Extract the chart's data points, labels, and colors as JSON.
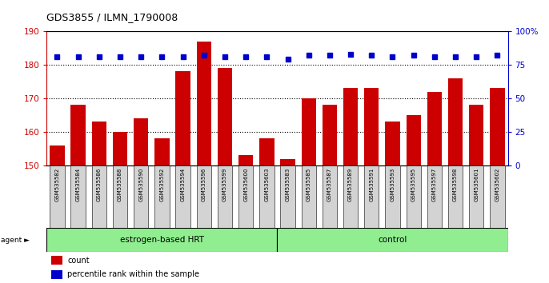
{
  "title": "GDS3855 / ILMN_1790008",
  "samples": [
    "GSM535582",
    "GSM535584",
    "GSM535586",
    "GSM535588",
    "GSM535590",
    "GSM535592",
    "GSM535594",
    "GSM535596",
    "GSM535599",
    "GSM535600",
    "GSM535603",
    "GSM535583",
    "GSM535585",
    "GSM535587",
    "GSM535589",
    "GSM535591",
    "GSM535593",
    "GSM535595",
    "GSM535597",
    "GSM535598",
    "GSM535601",
    "GSM535602"
  ],
  "counts": [
    156,
    168,
    163,
    160,
    164,
    158,
    178,
    187,
    179,
    153,
    158,
    152,
    170,
    168,
    173,
    173,
    163,
    165,
    172,
    176,
    168,
    173
  ],
  "percentiles": [
    81,
    81,
    81,
    81,
    81,
    81,
    81,
    82,
    81,
    81,
    81,
    79,
    82,
    82,
    83,
    82,
    81,
    82,
    81,
    81,
    81,
    82
  ],
  "group1_label": "estrogen-based HRT",
  "group2_label": "control",
  "group1_count": 11,
  "group2_count": 11,
  "ylim_left": [
    150,
    190
  ],
  "ylim_right": [
    0,
    100
  ],
  "yticks_left": [
    150,
    160,
    170,
    180,
    190
  ],
  "yticks_right": [
    0,
    25,
    50,
    75,
    100
  ],
  "bar_color": "#cc0000",
  "dot_color": "#0000cc",
  "group_bg": "#90ee90",
  "tick_bg": "#d3d3d3",
  "legend_count_label": "count",
  "legend_pct_label": "percentile rank within the sample"
}
